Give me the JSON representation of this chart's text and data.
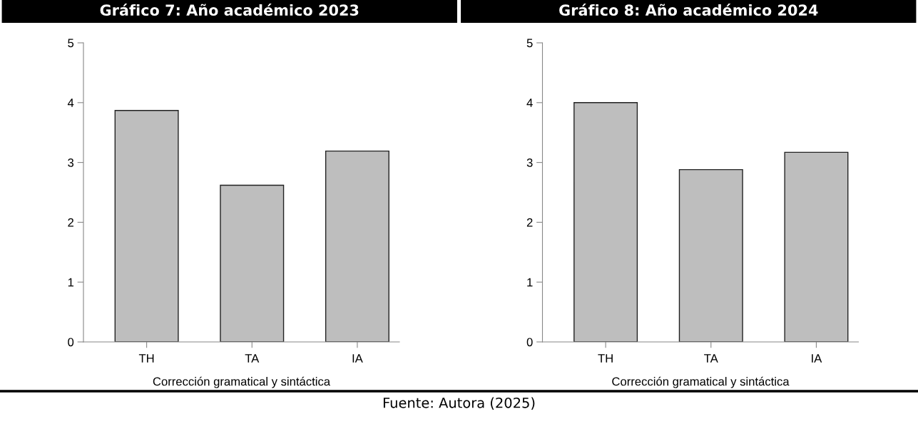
{
  "chart_data": [
    {
      "type": "bar",
      "title": "Gráfico 7: Año académico 2023",
      "xlabel": "Corrección gramatical y sintáctica",
      "categories": [
        "TH",
        "TA",
        "IA"
      ],
      "values": [
        3.87,
        2.62,
        3.19
      ],
      "color": "#bebebe",
      "ylim": [
        0,
        5
      ],
      "yticks": [
        0,
        1,
        2,
        3,
        4,
        5
      ],
      "grid": false
    },
    {
      "type": "bar",
      "title": "Gráfico 8: Año académico 2024",
      "xlabel": "Corrección gramatical y sintáctica",
      "categories": [
        "TH",
        "TA",
        "IA"
      ],
      "values": [
        4.0,
        2.88,
        3.17
      ],
      "color": "#bebebe",
      "ylim": [
        0,
        5
      ],
      "yticks": [
        0,
        1,
        2,
        3,
        4,
        5
      ],
      "grid": false,
      "annotations": [
        "Fuente: Autora (2025)"
      ]
    }
  ]
}
